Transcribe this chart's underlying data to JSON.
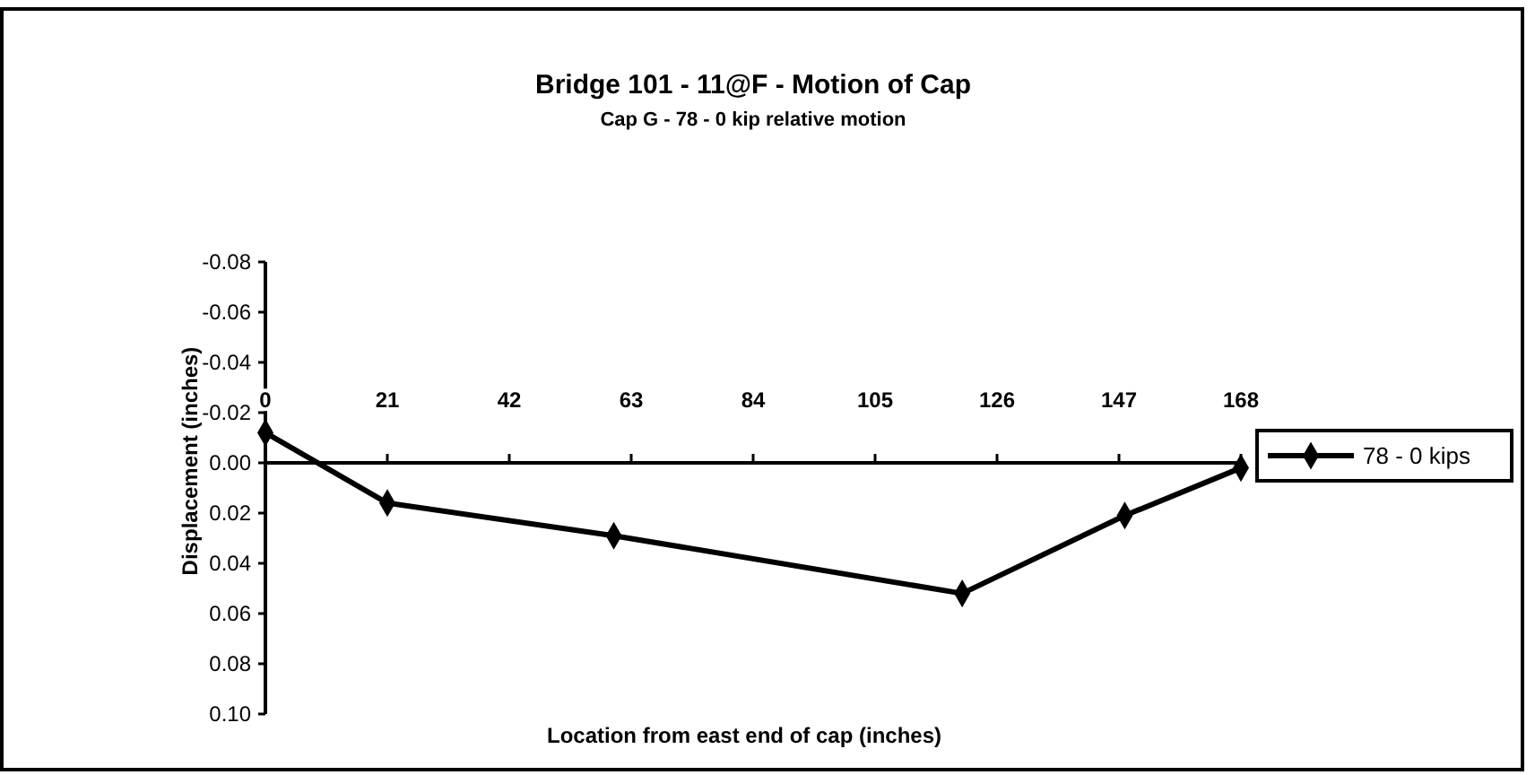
{
  "chart_data": {
    "type": "line",
    "title": "Bridge 101 - 11@F - Motion of Cap",
    "subtitle": "Cap G - 78 - 0 kip relative motion",
    "xlabel": "Location from east end of cap  (inches)",
    "ylabel": "Displacement  (inches)",
    "x": [
      0,
      21,
      60,
      120,
      148,
      168
    ],
    "series": [
      {
        "name": "78 - 0 kips",
        "color": "#000000",
        "values": [
          -0.012,
          0.016,
          0.029,
          0.052,
          0.021,
          0.002
        ]
      }
    ],
    "xlim": [
      0,
      168
    ],
    "xticks": [
      0,
      21,
      42,
      63,
      84,
      105,
      126,
      147,
      168
    ],
    "ylim": [
      0.1,
      -0.08
    ],
    "yticks": [
      {
        "value": -0.08,
        "label": "-0.08"
      },
      {
        "value": -0.06,
        "label": "-0.06"
      },
      {
        "value": -0.04,
        "label": "-0.04"
      },
      {
        "value": -0.02,
        "label": "-0.02"
      },
      {
        "value": 0,
        "label": "0.00"
      },
      {
        "value": 0.02,
        "label": "0.02"
      },
      {
        "value": 0.04,
        "label": "0.04"
      },
      {
        "value": 0.06,
        "label": "0.06"
      },
      {
        "value": 0.08,
        "label": "0.08"
      },
      {
        "value": 0.1,
        "label": "0.10"
      }
    ],
    "legend": "right",
    "marker": "diamond",
    "line_style": "solid",
    "grid": false
  }
}
